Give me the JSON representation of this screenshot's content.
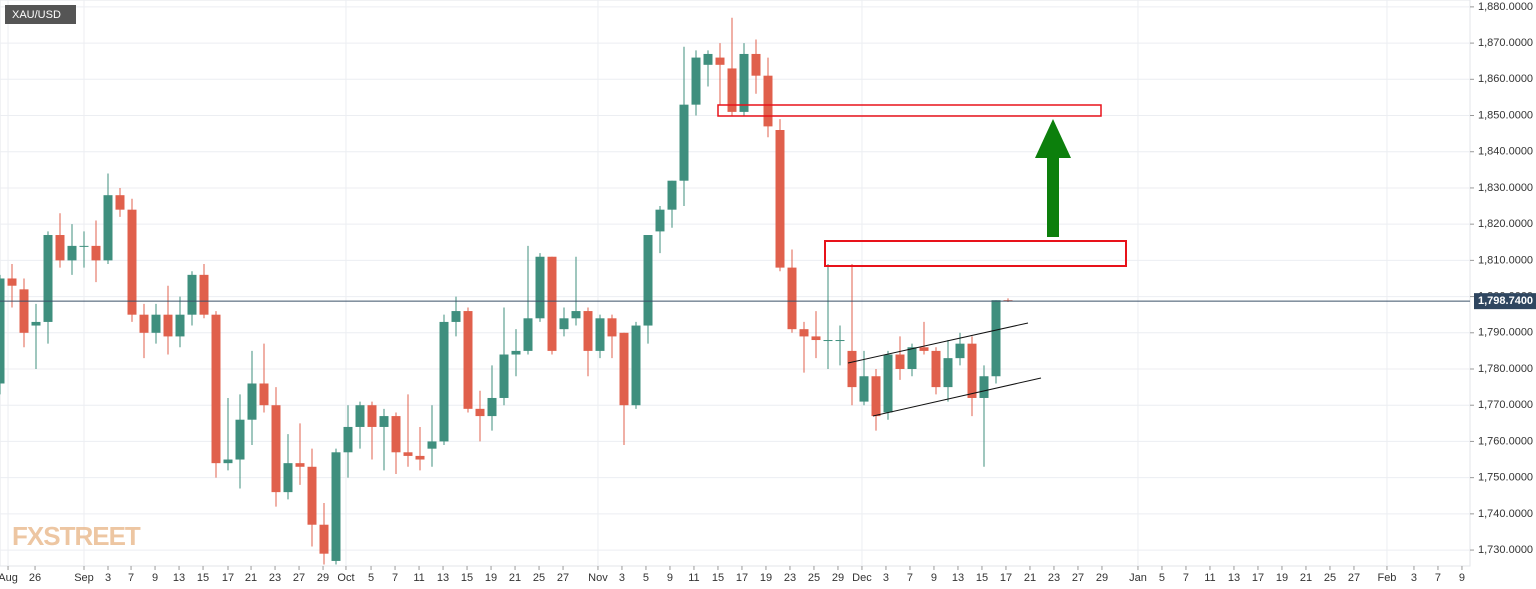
{
  "chart_data": {
    "type": "candlestick",
    "title": "XAU/USD",
    "watermark": "FXSTREET",
    "up_color": "#3f8f7e",
    "down_color": "#e0604c",
    "x": [
      -1,
      0,
      1,
      2,
      3,
      4,
      5,
      6,
      7,
      8,
      9,
      10,
      11,
      12,
      13,
      14,
      15,
      16,
      17,
      18,
      19,
      20,
      21,
      22,
      23,
      24,
      25,
      26,
      27,
      28,
      29,
      30,
      31,
      32,
      33,
      34,
      35,
      36,
      37,
      38,
      39,
      40,
      41,
      42,
      43,
      44,
      45,
      46,
      47,
      48,
      49,
      50,
      51,
      52,
      53,
      54,
      55,
      56,
      57,
      58,
      59,
      60,
      61,
      62,
      63,
      64,
      65,
      66,
      67,
      68,
      69,
      70,
      71,
      72,
      73,
      74,
      75,
      76,
      77,
      78,
      79,
      80,
      81,
      82,
      83
    ],
    "open": [
      1776,
      1805,
      1802,
      1792,
      1793,
      1817,
      1810,
      1814,
      1814,
      1810,
      1828,
      1824,
      1795,
      1790,
      1795,
      1789,
      1795,
      1806,
      1795,
      1754,
      1755,
      1766,
      1776,
      1770,
      1746,
      1754,
      1753,
      1737,
      1727,
      1757,
      1764,
      1770,
      1764,
      1767,
      1757,
      1756,
      1758,
      1760,
      1793,
      1796,
      1769,
      1767,
      1772,
      1784,
      1785,
      1794,
      1811,
      1791,
      1794,
      1796,
      1785,
      1794,
      1790,
      1770,
      1792,
      1818,
      1824,
      1832,
      1853,
      1864,
      1866,
      1863,
      1851,
      1867,
      1861,
      1846,
      1808,
      1791,
      1789,
      1788,
      1788,
      1785,
      1771,
      1778,
      1768,
      1784,
      1780,
      1786,
      1785,
      1775,
      1783,
      1787,
      1772,
      1778,
      1799
    ],
    "high": [
      1806,
      1809,
      1805,
      1798,
      1818,
      1823,
      1820,
      1818,
      1821,
      1834,
      1830,
      1827,
      1798,
      1798,
      1803,
      1800,
      1807,
      1809,
      1796,
      1772,
      1773,
      1785,
      1787,
      1775,
      1762,
      1765,
      1758,
      1743,
      1758,
      1770,
      1771,
      1771,
      1769,
      1768,
      1773,
      1764,
      1770,
      1795,
      1800,
      1797,
      1774,
      1781,
      1797,
      1791,
      1814,
      1812,
      1811,
      1797,
      1811,
      1797,
      1795,
      1795,
      1790,
      1793,
      1817,
      1825,
      1832,
      1869,
      1868,
      1868,
      1870,
      1877,
      1870,
      1871,
      1866,
      1849,
      1813,
      1793,
      1796,
      1809,
      1792,
      1809,
      1785,
      1780,
      1785,
      1789,
      1787,
      1793,
      1786,
      1788,
      1790,
      1789,
      1781,
      1799,
      1799.5
    ],
    "low": [
      1773,
      1797,
      1786,
      1780,
      1787,
      1808,
      1806,
      1808,
      1804,
      1809,
      1822,
      1793,
      1783,
      1787,
      1784,
      1786,
      1792,
      1794,
      1750,
      1752,
      1747,
      1759,
      1768,
      1742,
      1744,
      1748,
      1731,
      1726,
      1726,
      1750,
      1758,
      1755,
      1752,
      1751,
      1753,
      1752,
      1753,
      1759,
      1789,
      1768,
      1760,
      1763,
      1770,
      1778,
      1784,
      1793,
      1784,
      1789,
      1792,
      1778,
      1783,
      1783,
      1759,
      1769,
      1787,
      1812,
      1819,
      1825,
      1850,
      1858,
      1853,
      1850,
      1850,
      1856,
      1844,
      1807,
      1790,
      1779,
      1783,
      1780,
      1781,
      1770,
      1770,
      1763,
      1766,
      1777,
      1778,
      1784,
      1773,
      1771,
      1781,
      1767,
      1753,
      1776,
      1798.5
    ],
    "close": [
      1805,
      1803,
      1790,
      1793,
      1817,
      1810,
      1814,
      1814,
      1810,
      1828,
      1824,
      1795,
      1790,
      1795,
      1789,
      1795,
      1806,
      1795,
      1754,
      1755,
      1766,
      1776,
      1770,
      1746,
      1754,
      1753,
      1737,
      1729,
      1757,
      1764,
      1770,
      1764,
      1767,
      1757,
      1756,
      1755,
      1760,
      1793,
      1796,
      1769,
      1767,
      1772,
      1784,
      1785,
      1794,
      1811,
      1785,
      1794,
      1796,
      1785,
      1794,
      1789,
      1770,
      1792,
      1817,
      1824,
      1832,
      1853,
      1866,
      1867,
      1864,
      1851,
      1867,
      1861,
      1847,
      1808,
      1791,
      1789,
      1788,
      1788,
      1788,
      1775,
      1778,
      1767,
      1784,
      1780,
      1786,
      1785,
      1775,
      1783,
      1787,
      1772,
      1778,
      1799,
      1798.74
    ],
    "last_price": {
      "value": 1798.74,
      "label": "1,798.7400"
    },
    "xlim": [
      -1,
      121.5
    ],
    "ylim": [
      1725.6,
      1881.9
    ],
    "yticks": [
      {
        "value": 1730,
        "label": "1,730.0000"
      },
      {
        "value": 1740,
        "label": "1,740.0000"
      },
      {
        "value": 1750,
        "label": "1,750.0000"
      },
      {
        "value": 1760,
        "label": "1,760.0000"
      },
      {
        "value": 1770,
        "label": "1,770.0000"
      },
      {
        "value": 1780,
        "label": "1,780.0000"
      },
      {
        "value": 1790,
        "label": "1,790.0000"
      },
      {
        "value": 1800,
        "label": "1,800.0000"
      },
      {
        "value": 1810,
        "label": "1,810.0000"
      },
      {
        "value": 1820,
        "label": "1,820.0000"
      },
      {
        "value": 1830,
        "label": "1,830.0000"
      },
      {
        "value": 1840,
        "label": "1,840.0000"
      },
      {
        "value": 1850,
        "label": "1,850.0000"
      },
      {
        "value": 1860,
        "label": "1,860.0000"
      },
      {
        "value": 1870,
        "label": "1,870.0000"
      },
      {
        "value": 1880,
        "label": "1,880.0000"
      }
    ],
    "xticks": [
      {
        "value": -0.33,
        "label": "Aug"
      },
      {
        "value": 1.92,
        "label": "26"
      },
      {
        "value": 6,
        "label": "Sep"
      },
      {
        "value": 8,
        "label": "3"
      },
      {
        "value": 9.92,
        "label": "7"
      },
      {
        "value": 11.92,
        "label": "9"
      },
      {
        "value": 13.92,
        "label": "13"
      },
      {
        "value": 15.92,
        "label": "15"
      },
      {
        "value": 18,
        "label": "17"
      },
      {
        "value": 19.92,
        "label": "21"
      },
      {
        "value": 21.92,
        "label": "23"
      },
      {
        "value": 23.92,
        "label": "27"
      },
      {
        "value": 25.92,
        "label": "29"
      },
      {
        "value": 27.83,
        "label": "Oct"
      },
      {
        "value": 29.92,
        "label": "5"
      },
      {
        "value": 31.92,
        "label": "7"
      },
      {
        "value": 33.92,
        "label": "11"
      },
      {
        "value": 35.92,
        "label": "13"
      },
      {
        "value": 37.92,
        "label": "15"
      },
      {
        "value": 39.92,
        "label": "19"
      },
      {
        "value": 41.92,
        "label": "21"
      },
      {
        "value": 43.92,
        "label": "25"
      },
      {
        "value": 45.92,
        "label": "27"
      },
      {
        "value": 48.83,
        "label": "Nov"
      },
      {
        "value": 50.83,
        "label": "3"
      },
      {
        "value": 52.83,
        "label": "5"
      },
      {
        "value": 54.83,
        "label": "9"
      },
      {
        "value": 56.83,
        "label": "11"
      },
      {
        "value": 58.83,
        "label": "15"
      },
      {
        "value": 60.83,
        "label": "17"
      },
      {
        "value": 62.83,
        "label": "19"
      },
      {
        "value": 64.83,
        "label": "23"
      },
      {
        "value": 66.83,
        "label": "25"
      },
      {
        "value": 68.83,
        "label": "29"
      },
      {
        "value": 70.83,
        "label": "Dec"
      },
      {
        "value": 72.83,
        "label": "3"
      },
      {
        "value": 74.83,
        "label": "7"
      },
      {
        "value": 76.83,
        "label": "9"
      },
      {
        "value": 78.83,
        "label": "13"
      },
      {
        "value": 80.83,
        "label": "15"
      },
      {
        "value": 82.83,
        "label": "17"
      },
      {
        "value": 84.83,
        "label": "21"
      },
      {
        "value": 86.83,
        "label": "23"
      },
      {
        "value": 88.83,
        "label": "27"
      },
      {
        "value": 90.83,
        "label": "29"
      },
      {
        "value": 93.83,
        "label": "Jan"
      },
      {
        "value": 95.83,
        "label": "5"
      },
      {
        "value": 97.83,
        "label": "7"
      },
      {
        "value": 99.83,
        "label": "11"
      },
      {
        "value": 101.83,
        "label": "13"
      },
      {
        "value": 103.83,
        "label": "17"
      },
      {
        "value": 105.83,
        "label": "19"
      },
      {
        "value": 107.83,
        "label": "21"
      },
      {
        "value": 109.83,
        "label": "25"
      },
      {
        "value": 111.83,
        "label": "27"
      },
      {
        "value": 114.58,
        "label": "Feb"
      },
      {
        "value": 116.83,
        "label": "3"
      },
      {
        "value": 118.83,
        "label": "7"
      },
      {
        "value": 120.83,
        "label": "9"
      }
    ],
    "grid": true
  }
}
